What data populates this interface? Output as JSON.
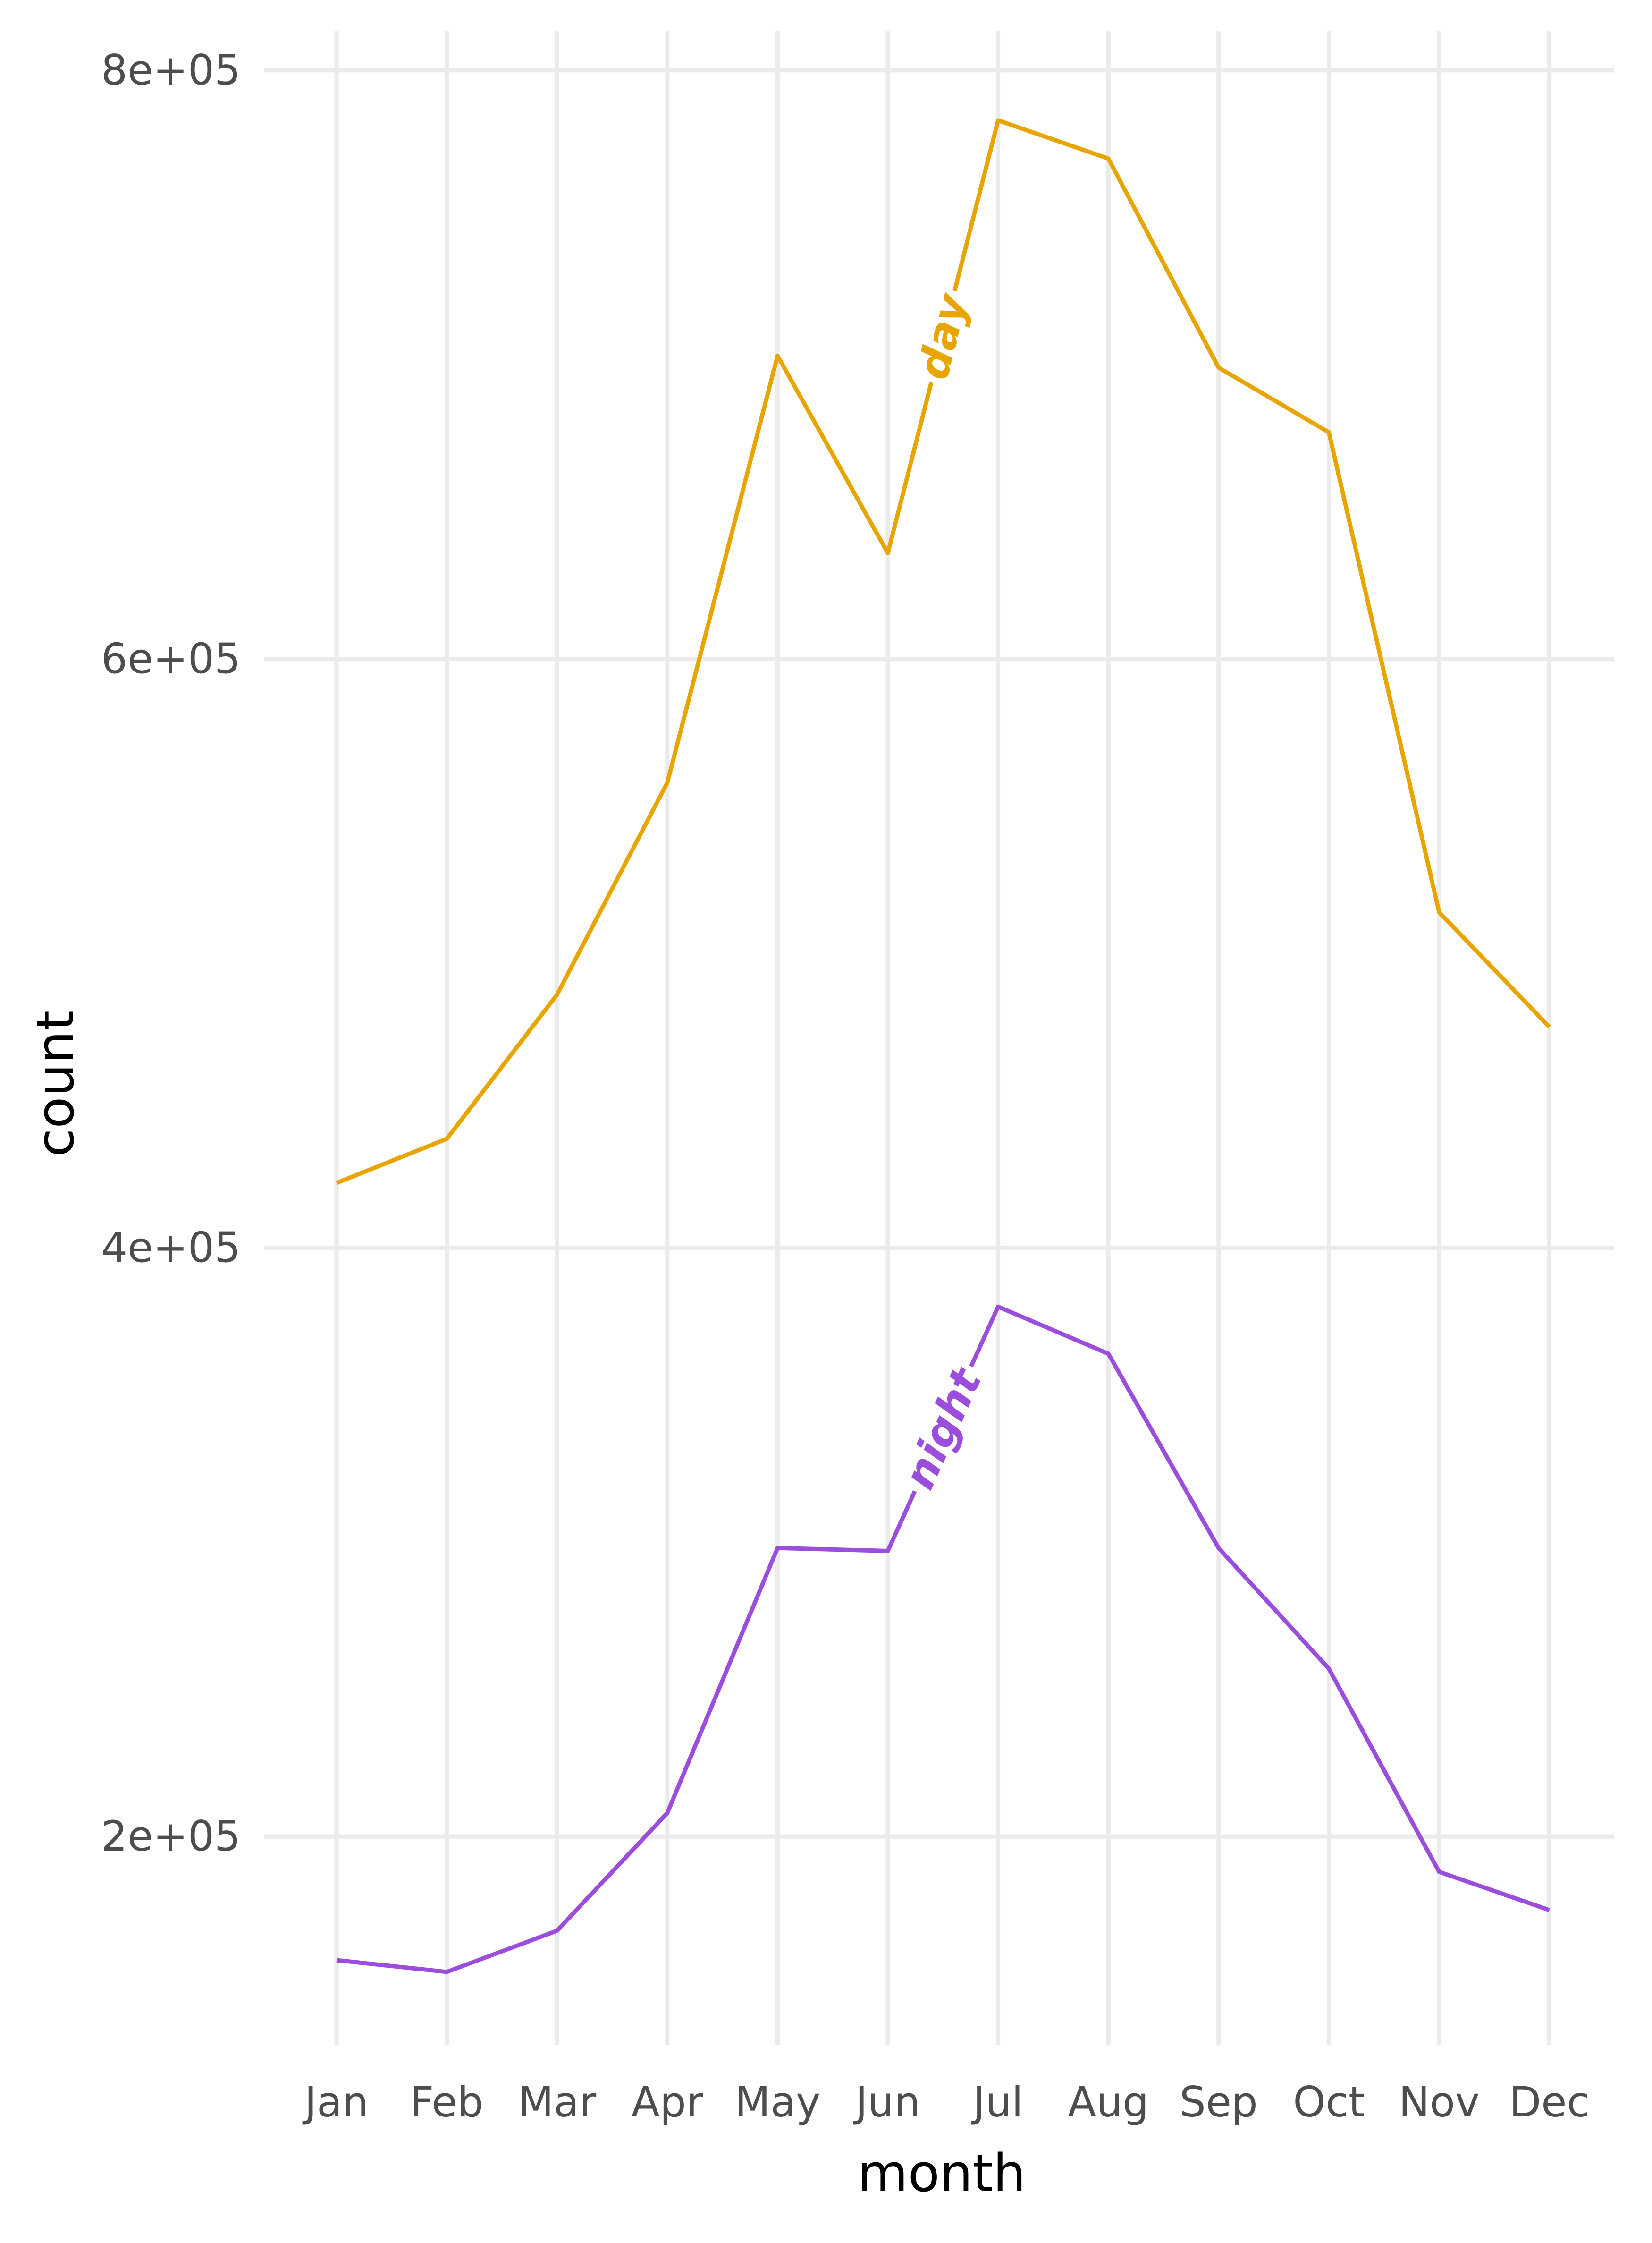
{
  "chart_data": {
    "type": "line",
    "xlabel": "month",
    "ylabel": "count",
    "categories": [
      "Jan",
      "Feb",
      "Mar",
      "Apr",
      "May",
      "Jun",
      "Jul",
      "Aug",
      "Sep",
      "Oct",
      "Nov",
      "Dec"
    ],
    "yticks": [
      200000,
      400000,
      600000,
      800000
    ],
    "ytick_labels": [
      "2e+05",
      "4e+05",
      "6e+05",
      "8e+05"
    ],
    "ylim": [
      128000,
      808000
    ],
    "grid": true,
    "legend": "direct labels on lines",
    "series": [
      {
        "name": "day",
        "color": "#E8A500",
        "values": [
          422000,
          437000,
          486000,
          558000,
          703000,
          636000,
          783000,
          770000,
          699000,
          677000,
          514000,
          475000
        ]
      },
      {
        "name": "night",
        "color": "#9B4DDB",
        "values": [
          158000,
          154000,
          168000,
          208000,
          298000,
          297000,
          380000,
          364000,
          298000,
          257000,
          188000,
          175000
        ]
      }
    ]
  }
}
